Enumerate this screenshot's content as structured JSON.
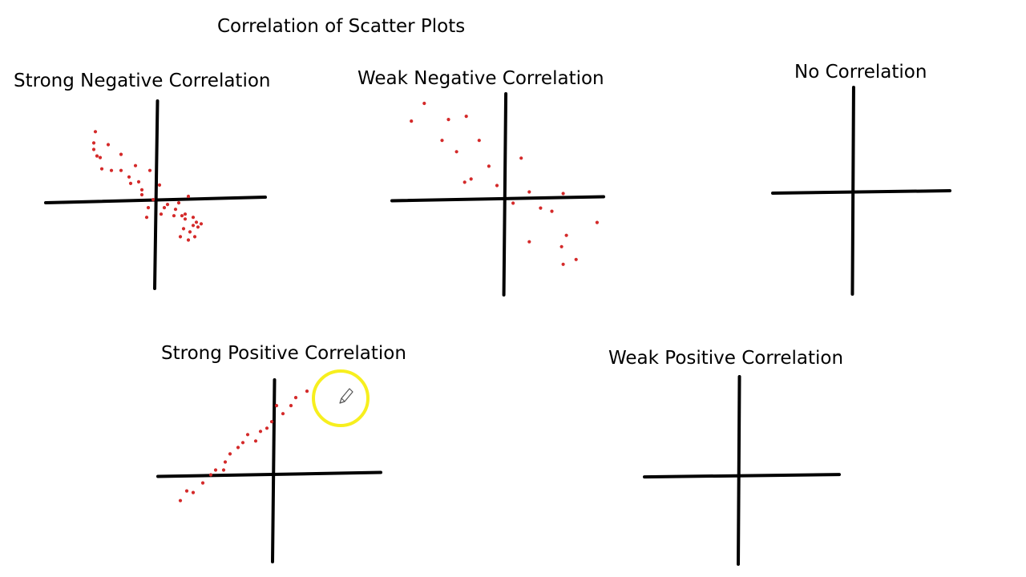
{
  "page": {
    "title": "Correlation of Scatter Plots",
    "mark_color": "#d42a2a",
    "axis_color": "#000000",
    "cursor_highlight_color": "#f7ef1e"
  },
  "cursor": {
    "icon": "pencil-icon"
  },
  "chart_data": [
    {
      "type": "scatter",
      "title": "Strong Negative Correlation",
      "xlim": [
        -6.9,
        6.8
      ],
      "ylim": [
        -5.5,
        6.1
      ],
      "x": [
        -3.8,
        -3.9,
        -3.0,
        -3.9,
        -3.7,
        -3.5,
        -2.2,
        -3.4,
        -2.8,
        -1.3,
        -2.2,
        -1.7,
        -0.4,
        -1.1,
        -1.6,
        -0.9,
        -0.9,
        0.2,
        -0.2,
        0.7,
        1.4,
        2.0,
        0.5,
        1.2,
        1.8,
        0.3,
        1.1,
        1.8,
        2.3,
        2.1,
        2.5,
        2.3,
        1.7,
        2.0,
        1.5,
        2.6,
        2.8,
        2.4,
        1.6,
        -0.5,
        -0.6
      ],
      "y": [
        4.2,
        3.5,
        3.4,
        3.1,
        2.7,
        2.6,
        2.8,
        1.9,
        1.8,
        2.1,
        1.8,
        1.4,
        1.8,
        1.1,
        1.0,
        0.6,
        0.3,
        0.9,
        0.0,
        -0.3,
        -0.2,
        0.2,
        -0.5,
        -0.6,
        -0.9,
        -0.9,
        -1.0,
        -1.2,
        -1.6,
        -2.0,
        -1.4,
        -1.1,
        -1.8,
        -2.5,
        -2.3,
        -1.7,
        -1.5,
        -2.3,
        -1.0,
        -0.5,
        -1.1
      ]
    },
    {
      "type": "scatter",
      "title": "Weak Negative Correlation",
      "xlim": [
        -7.0,
        6.1
      ],
      "ylim": [
        -6.0,
        6.5
      ],
      "x": [
        -5.0,
        -5.8,
        -3.5,
        -3.9,
        -2.4,
        -3.0,
        -2.1,
        -2.5,
        -1.6,
        -1.0,
        -0.5,
        1.0,
        1.5,
        0.5,
        2.2,
        2.9,
        3.6,
        3.5,
        3.8,
        5.7,
        1.5,
        4.4,
        3.6
      ],
      "y": [
        5.9,
        4.8,
        4.9,
        3.6,
        5.1,
        2.9,
        1.2,
        1.0,
        3.6,
        2.0,
        0.8,
        2.5,
        0.4,
        -0.3,
        -0.6,
        -0.8,
        0.3,
        -3.0,
        -2.3,
        -1.5,
        -2.7,
        -3.8,
        -4.1
      ]
    },
    {
      "type": "scatter",
      "title": "No Correlation",
      "xlim": [
        -5.0,
        6.0
      ],
      "ylim": [
        -6.4,
        6.5
      ],
      "x": [],
      "y": []
    },
    {
      "type": "scatter",
      "title": "Strong Positive Correlation",
      "xlim": [
        -7.2,
        6.7
      ],
      "ylim": [
        -5.4,
        5.9
      ],
      "x": [
        -5.8,
        -5.4,
        -5.0,
        -4.4,
        -3.9,
        -3.6,
        -3.0,
        -2.7,
        -2.2,
        -1.9,
        -1.6,
        -1.1,
        -0.8,
        -0.4,
        -0.1,
        0.2,
        0.6,
        1.1,
        1.4,
        2.1,
        -3.1
      ],
      "y": [
        -1.6,
        -1.0,
        -1.1,
        -0.5,
        0.0,
        0.3,
        0.8,
        1.3,
        1.7,
        2.0,
        2.5,
        2.1,
        2.7,
        2.9,
        3.3,
        4.3,
        3.8,
        4.3,
        4.8,
        5.2,
        0.3
      ]
    },
    {
      "type": "scatter",
      "title": "Weak Positive Correlation",
      "xlim": [
        -5.9,
        6.3
      ],
      "ylim": [
        -5.4,
        6.1
      ],
      "x": [],
      "y": []
    }
  ]
}
